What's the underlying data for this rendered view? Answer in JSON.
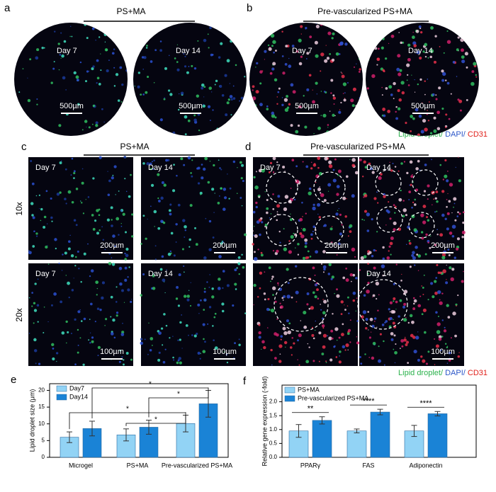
{
  "panel_a": {
    "letter": "a",
    "title": "PS+MA",
    "images": [
      {
        "label": "Day 7",
        "scale": "500µm"
      },
      {
        "label": "Day 14",
        "scale": "500µm"
      }
    ]
  },
  "panel_b": {
    "letter": "b",
    "title": "Pre-vascularized PS+MA",
    "images": [
      {
        "label": "Day 7",
        "scale": "500µm"
      },
      {
        "label": "Day 14",
        "scale": "500µm"
      }
    ],
    "legend": [
      "Lipid droplet/",
      " DAPI/",
      " CD31"
    ]
  },
  "panel_c": {
    "letter": "c",
    "title": "PS+MA",
    "row_labels": [
      "10x",
      "20x"
    ],
    "images": [
      {
        "label": "Day 7",
        "scale": "200µm"
      },
      {
        "label": "Day 14",
        "scale": "200µm"
      },
      {
        "label": "Day 7",
        "scale": "100µm"
      },
      {
        "label": "Day 14",
        "scale": "100µm"
      }
    ]
  },
  "panel_d": {
    "letter": "d",
    "title": "Pre-vascularized PS+MA",
    "images": [
      {
        "label": "Day 7",
        "scale": "200µm"
      },
      {
        "label": "Day 14",
        "scale": "200µm"
      },
      {
        "label": "",
        "scale": ""
      },
      {
        "label": "Day 14",
        "scale": "100µm"
      }
    ],
    "legend": [
      "Lipid droplet/",
      " DAPI/",
      " CD31"
    ]
  },
  "chart_data": [
    {
      "type": "bar",
      "panel": "e",
      "y_label": "Lipid droplet size (μm)",
      "categories": [
        "Microgel",
        "PS+MA",
        "Pre-vascularized PS+MA"
      ],
      "series": [
        {
          "name": "Day7",
          "color": "#92d3f5",
          "values": [
            6.0,
            6.7,
            10.1
          ],
          "errors": [
            1.6,
            1.8,
            2.5
          ]
        },
        {
          "name": "Day14",
          "color": "#1a83d6",
          "values": [
            8.6,
            9.0,
            16.0
          ],
          "errors": [
            2.2,
            2.1,
            4.0
          ]
        }
      ],
      "ylim": [
        0,
        22
      ],
      "yticks": [
        0,
        5,
        10,
        15,
        20
      ],
      "annotations": [
        "*",
        "*",
        "*",
        "*"
      ]
    },
    {
      "type": "bar",
      "panel": "f",
      "y_label": "Relative gene expression (-fold)",
      "categories": [
        "PPARγ",
        "FAS",
        "Adiponectin"
      ],
      "series": [
        {
          "name": "PS+MA",
          "color": "#92d3f5",
          "values": [
            0.95,
            0.95,
            0.95
          ],
          "errors": [
            0.23,
            0.07,
            0.2
          ]
        },
        {
          "name": "Pre-vascularized PS+MA",
          "color": "#1a83d6",
          "values": [
            1.33,
            1.63,
            1.57
          ],
          "errors": [
            0.13,
            0.1,
            0.08
          ]
        }
      ],
      "ylim": [
        0,
        2.6
      ],
      "yticks": [
        {
          "value": 0,
          "label": "0.0"
        },
        {
          "value": 0.5,
          "label": "0.5"
        },
        {
          "value": 1,
          "label": "1.0"
        },
        {
          "value": 1.5,
          "label": "1.5"
        },
        {
          "value": 2,
          "label": "2.0"
        }
      ],
      "annotations": [
        "**",
        "****",
        "****"
      ]
    }
  ]
}
